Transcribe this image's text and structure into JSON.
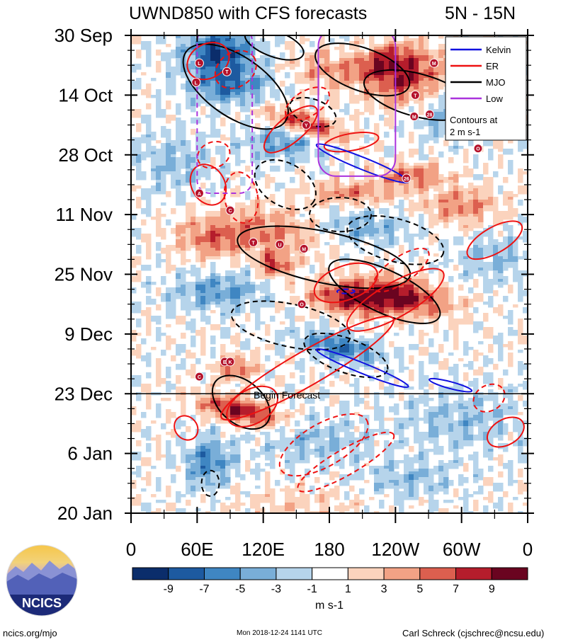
{
  "header": {
    "title": "UWND850 with CFS forecasts",
    "region": "5N - 15N"
  },
  "chart_data": {
    "type": "heatmap",
    "title": "UWND850 with CFS forecasts",
    "subtitle": "5N - 15N",
    "y_ticks": [
      "30 Sep",
      "14 Oct",
      "28 Oct",
      "11 Nov",
      "25 Nov",
      "9 Dec",
      "23 Dec",
      "6 Jan",
      "20 Jan"
    ],
    "x_ticks": [
      "0",
      "60E",
      "120E",
      "180",
      "120W",
      "60W",
      "0"
    ],
    "x_range_deg": [
      0,
      360
    ],
    "time_range_days": [
      0,
      112
    ],
    "forecast_start_day": 84,
    "forecast_label": "Begin Forecast",
    "legend": {
      "entries": [
        {
          "name": "Kelvin",
          "color": "#1010e0",
          "style": "solid"
        },
        {
          "name": "ER",
          "color": "#ee1111",
          "style": "solid"
        },
        {
          "name": "MJO",
          "color": "#000000",
          "style": "solid"
        },
        {
          "name": "Low",
          "color": "#aa33dd",
          "style": "solid"
        }
      ],
      "note_line1": "Contours at",
      "note_line2": "2 m s-1",
      "placement": "top-right"
    },
    "colorbar": {
      "unit": "m s-1",
      "tick_labels": [
        "-9",
        "-7",
        "-5",
        "-3",
        "-1",
        "1",
        "3",
        "5",
        "7",
        "9"
      ],
      "colors": [
        "#0b2d6b",
        "#1d5aa0",
        "#3f86c2",
        "#79aed8",
        "#b6d4eb",
        "#ffffff",
        "#fbd3bd",
        "#f2a285",
        "#dc5f4f",
        "#b51d2c",
        "#6a0420"
      ]
    },
    "storm_markers": [
      {
        "label": "L",
        "lon": 62,
        "day": 6.5
      },
      {
        "label": "T",
        "lon": 87,
        "day": 8.5
      },
      {
        "label": "L",
        "lon": 59,
        "day": 11
      },
      {
        "label": "T",
        "lon": 258,
        "day": 14
      },
      {
        "label": "M",
        "lon": 275,
        "day": 6.5
      },
      {
        "label": "M",
        "lon": 257,
        "day": 19
      },
      {
        "label": "28",
        "lon": 271,
        "day": 18.5
      },
      {
        "label": "Y",
        "lon": 159,
        "day": 21
      },
      {
        "label": "O",
        "lon": 315,
        "day": 26.5
      },
      {
        "label": "26",
        "lon": 250,
        "day": 33.5
      },
      {
        "label": "A",
        "lon": 62,
        "day": 37
      },
      {
        "label": "C",
        "lon": 90,
        "day": 41
      },
      {
        "label": "T",
        "lon": 111,
        "day": 48.5
      },
      {
        "label": "U",
        "lon": 135,
        "day": 49
      },
      {
        "label": "M",
        "lon": 157,
        "day": 50
      },
      {
        "label": "O",
        "lon": 155,
        "day": 63
      },
      {
        "label": "E",
        "lon": 85,
        "day": 76.5
      },
      {
        "label": "K",
        "lon": 90,
        "day": 76.5
      },
      {
        "label": "C",
        "lon": 62,
        "day": 80
      }
    ],
    "wave_lines": [
      {
        "name": "Kelvin",
        "description": "filtered eastward propagating signals near 160E-250E and 140E-300W"
      },
      {
        "name": "ER",
        "description": "westward propagating positive/negative anomaly contours"
      },
      {
        "name": "MJO",
        "description": "slow eastward propagating contours"
      },
      {
        "name": "Low",
        "description": "low-frequency contours near 60E-100E and 170E-240E"
      }
    ]
  },
  "footer": {
    "logo_text": "NCICS",
    "left": "ncics.org/mjo",
    "center": "Mon 2018-12-24 1141 UTC",
    "right": "Carl Schreck (cjschrec@ncsu.edu)"
  }
}
